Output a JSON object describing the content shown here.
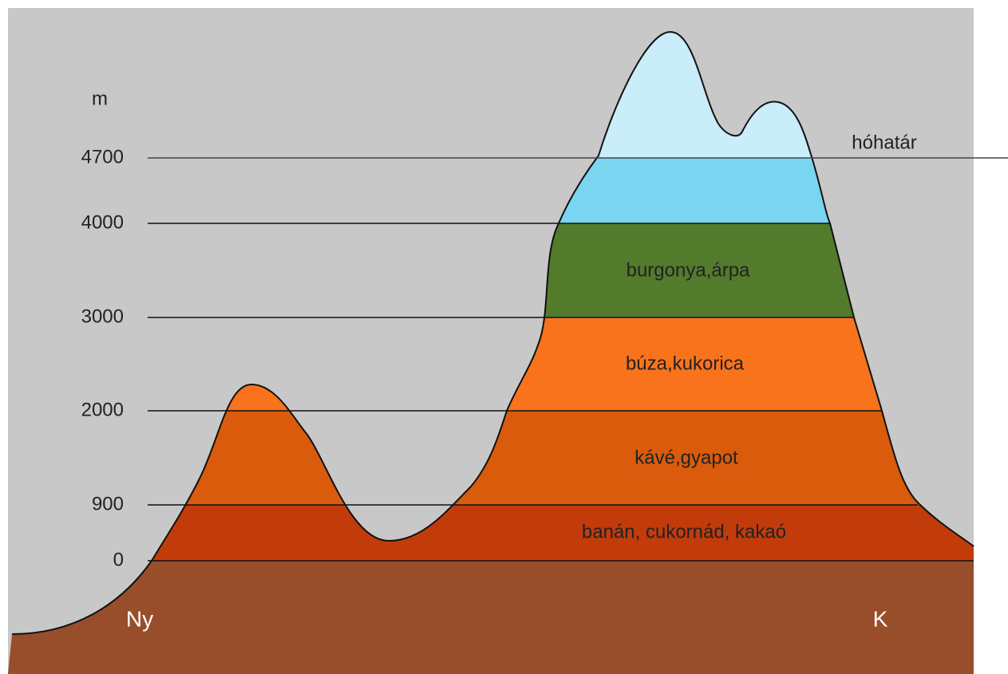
{
  "unit": "m",
  "levels": [
    4700,
    4000,
    3000,
    2000,
    900,
    0
  ],
  "snow_line": "hóhatár",
  "zones": [
    "burgonya,árpa",
    "búza,kukorica",
    "kávé,gyapot",
    "banán, cukornád, kakaó"
  ],
  "directions": {
    "west": "Ny",
    "east": "K"
  }
}
